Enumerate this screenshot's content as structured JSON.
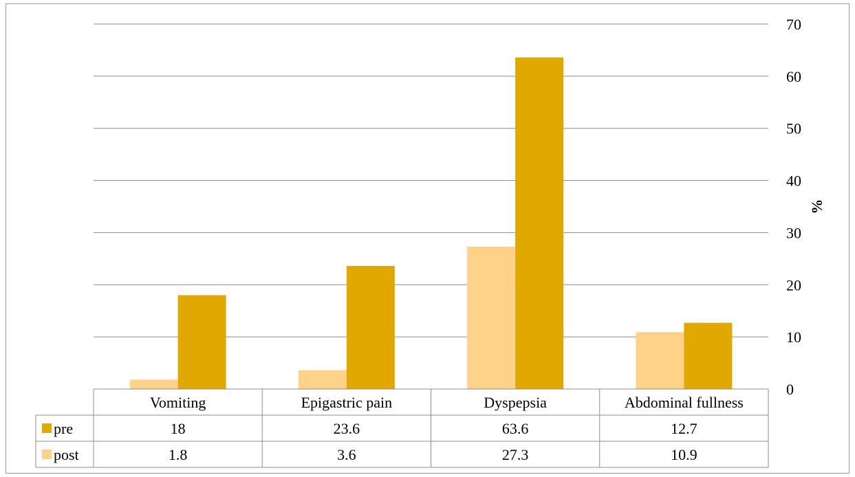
{
  "chart_data": {
    "type": "bar",
    "title": "",
    "xlabel": "",
    "ylabel": "%",
    "ylim": [
      0,
      70
    ],
    "yticks": [
      0,
      10,
      20,
      30,
      40,
      50,
      60,
      70
    ],
    "y_axis_side": "right",
    "grid": true,
    "legend": "in data table",
    "data_table": true,
    "categories": [
      "Vomiting",
      "Epigastric pain",
      "Dyspepsia",
      "Abdominal fullness"
    ],
    "series": [
      {
        "name": "pre",
        "values": [
          18,
          23.6,
          63.6,
          12.7
        ],
        "color": "#E0A800"
      },
      {
        "name": "post",
        "values": [
          1.8,
          3.6,
          27.3,
          10.9
        ],
        "color": "#FFD28A"
      }
    ],
    "bar_order": [
      "post",
      "pre"
    ]
  }
}
